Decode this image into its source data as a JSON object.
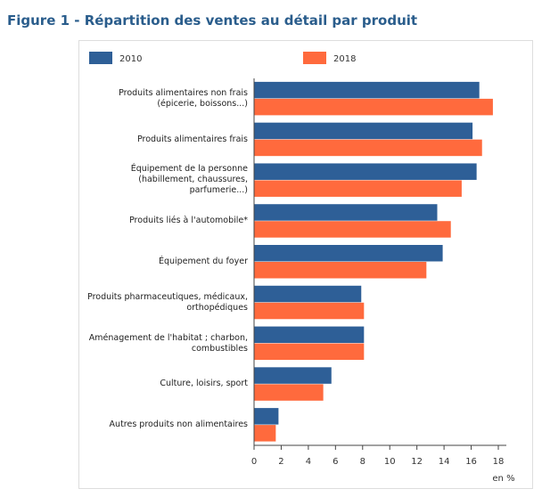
{
  "chart_data": {
    "type": "barh",
    "title": "Figure 1 - Répartition des ventes au détail par produit",
    "x_label": "en %",
    "categories": [
      "Produits alimentaires non frais (épicerie, boissons...)",
      "Produits alimentaires frais",
      "Équipement de la personne (habillement, chaussures, parfumerie...)",
      "Produits liés à l'automobile*",
      "Équipement du foyer",
      "Produits pharmaceutiques, médicaux, orthopédiques",
      "Aménagement de l'habitat ; charbon, combustibles",
      "Culture, loisirs, sport",
      "Autres produits non alimentaires"
    ],
    "series": [
      {
        "name": "2010",
        "color": "#2e5f97",
        "values": [
          16.6,
          16.1,
          16.4,
          13.5,
          13.9,
          7.9,
          8.1,
          5.7,
          1.8
        ]
      },
      {
        "name": "2018",
        "color": "#ff6a3d",
        "values": [
          17.6,
          16.8,
          15.3,
          14.5,
          12.7,
          8.1,
          8.1,
          5.1,
          1.6
        ]
      }
    ],
    "xlim": [
      0,
      18
    ],
    "xticks": [
      0,
      2,
      4,
      6,
      8,
      10,
      12,
      14,
      16,
      18
    ]
  }
}
